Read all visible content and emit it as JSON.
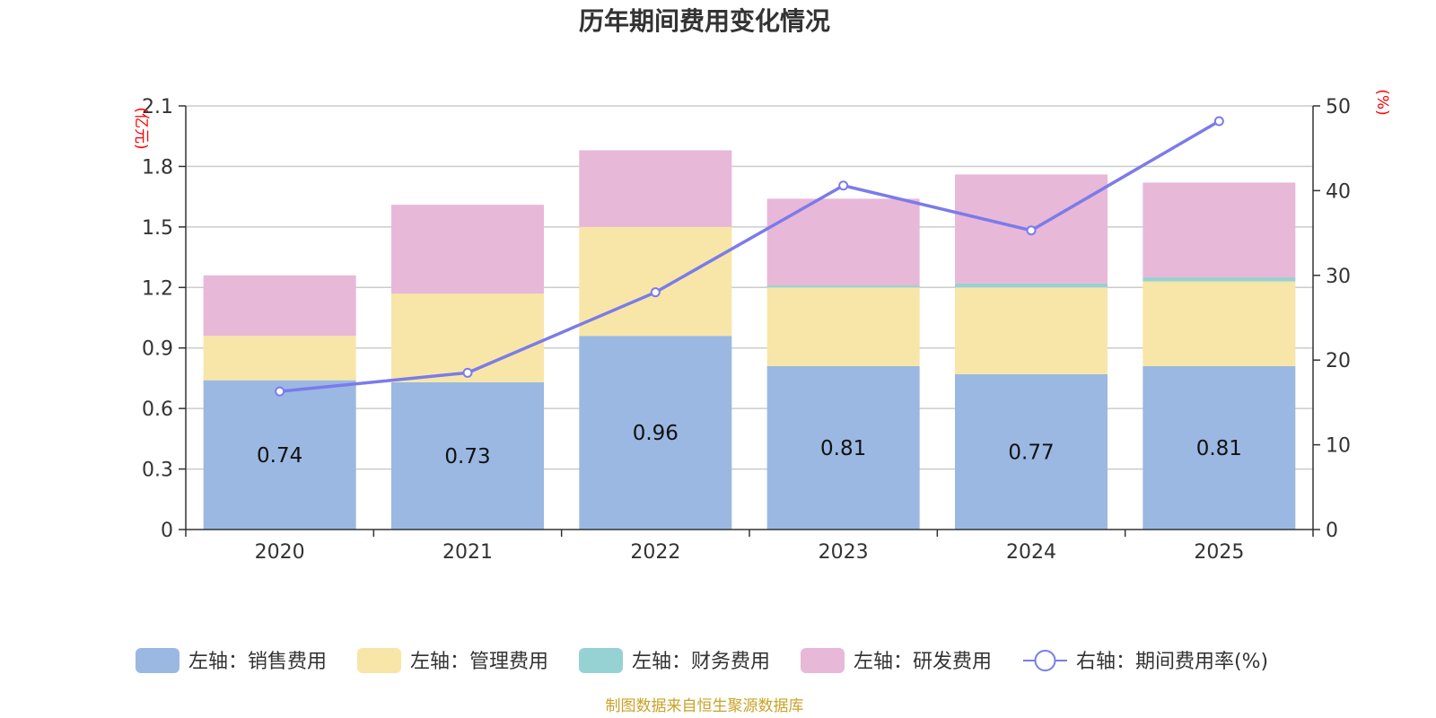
{
  "chart_data": {
    "type": "bar",
    "title": "历年期间费用变化情况",
    "categories": [
      "2020",
      "2021",
      "2022",
      "2023",
      "2024",
      "2025"
    ],
    "y_left": {
      "unit": "(亿元)",
      "min": 0,
      "max": 2.1,
      "ticks": [
        "0",
        "0.3",
        "0.6",
        "0.9",
        "1.2",
        "1.5",
        "1.8",
        "2.1"
      ]
    },
    "y_right": {
      "unit": "(%)",
      "min": 0,
      "max": 50,
      "ticks": [
        "0",
        "10",
        "20",
        "30",
        "40",
        "50"
      ]
    },
    "series": [
      {
        "name": "左轴：销售费用",
        "type": "bar",
        "color": "#9bb8e2",
        "values": [
          0.74,
          0.73,
          0.96,
          0.81,
          0.77,
          0.81
        ],
        "labels": [
          "0.74",
          "0.73",
          "0.96",
          "0.81",
          "0.77",
          "0.81"
        ]
      },
      {
        "name": "左轴：管理费用",
        "type": "bar",
        "color": "#f7e6a8",
        "values": [
          0.22,
          0.44,
          0.54,
          0.39,
          0.43,
          0.42
        ]
      },
      {
        "name": "左轴：财务费用",
        "type": "bar",
        "color": "#96d2d3",
        "values": [
          0.0,
          0.0,
          0.0,
          0.01,
          0.02,
          0.02
        ]
      },
      {
        "name": "左轴：研发费用",
        "type": "bar",
        "color": "#e8b8d9",
        "values": [
          0.3,
          0.44,
          0.38,
          0.43,
          0.54,
          0.47
        ]
      },
      {
        "name": "右轴：期间费用率(%)",
        "type": "line",
        "color": "#7b7bea",
        "values": [
          16.3,
          18.5,
          28.0,
          40.6,
          35.3,
          48.2
        ]
      }
    ],
    "grid": true,
    "legend": "bottom"
  },
  "source": "制图数据来自恒生聚源数据库"
}
